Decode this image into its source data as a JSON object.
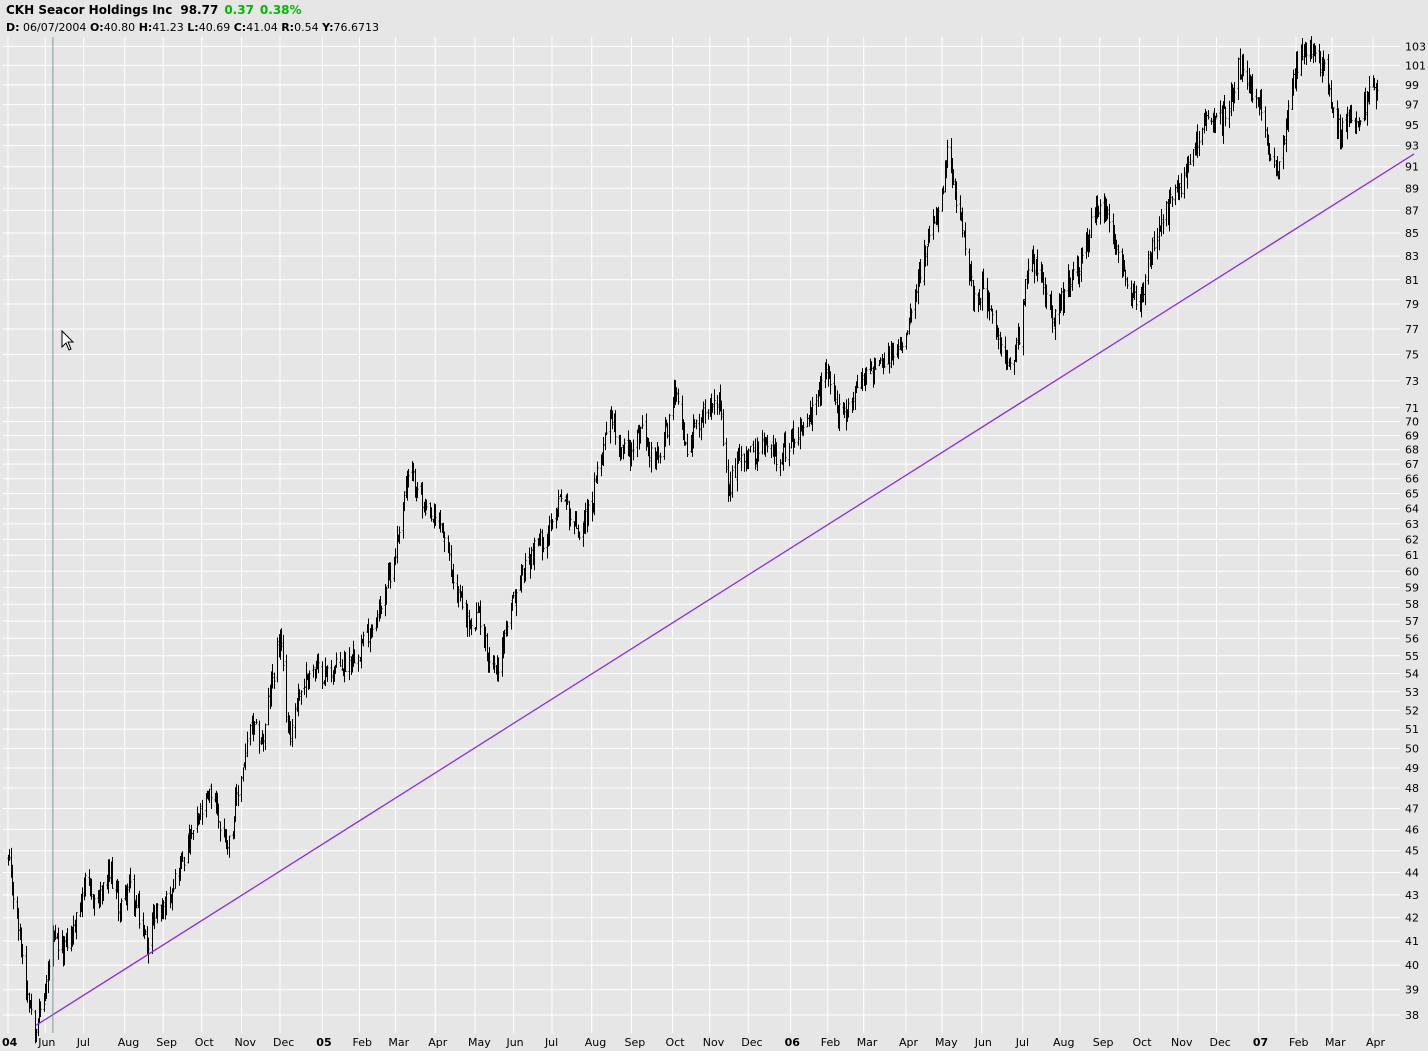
{
  "header": {
    "symbol_name": "CKH Seacor Holdings Inc",
    "last": "98.77",
    "change": "0.37",
    "change_pct": "0.38%",
    "info": {
      "d_label": "D:",
      "d_val": "06/07/2004",
      "o_label": "O:",
      "o_val": "40.80",
      "h_label": "H:",
      "h_val": "41.23",
      "l_label": "L:",
      "l_val": "40.69",
      "c_label": "C:",
      "c_val": "41.04",
      "r_label": "R:",
      "r_val": "0.54",
      "y_label": "Y:",
      "y_val": "76.6713"
    }
  },
  "colors": {
    "background": "#e6e6e6",
    "grid": "#ffffff",
    "bars": "#000000",
    "trendline": "#8a2be2",
    "change_up": "#00b800",
    "cursor_line": "#7a9aa0"
  },
  "chart_data": {
    "type": "ohlc-bar",
    "scale": "log",
    "ylim": [
      37.3,
      104
    ],
    "y_ticks": [
      38,
      39,
      40,
      41,
      42,
      43,
      44,
      45,
      46,
      47,
      48,
      49,
      50,
      51,
      52,
      53,
      54,
      55,
      56,
      57,
      58,
      59,
      60,
      61,
      62,
      63,
      64,
      65,
      66,
      67,
      68,
      69,
      70,
      71,
      73,
      75,
      77,
      79,
      81,
      83,
      85,
      87,
      89,
      91,
      93,
      95,
      97,
      99,
      101,
      103
    ],
    "x_ticks": [
      {
        "label": "04",
        "date": "2004-05-03",
        "year": true
      },
      {
        "label": "Jun",
        "date": "2004-06-01"
      },
      {
        "label": "Jul",
        "date": "2004-07-01"
      },
      {
        "label": "Aug",
        "date": "2004-08-02"
      },
      {
        "label": "Sep",
        "date": "2004-09-01"
      },
      {
        "label": "Oct",
        "date": "2004-10-01"
      },
      {
        "label": "Nov",
        "date": "2004-11-01"
      },
      {
        "label": "Dec",
        "date": "2004-12-01"
      },
      {
        "label": "05",
        "date": "2005-01-03",
        "year": true
      },
      {
        "label": "Feb",
        "date": "2005-02-01"
      },
      {
        "label": "Mar",
        "date": "2005-03-01"
      },
      {
        "label": "Apr",
        "date": "2005-04-01"
      },
      {
        "label": "May",
        "date": "2005-05-02"
      },
      {
        "label": "Jun",
        "date": "2005-06-01"
      },
      {
        "label": "Jul",
        "date": "2005-07-01"
      },
      {
        "label": "Aug",
        "date": "2005-08-01"
      },
      {
        "label": "Sep",
        "date": "2005-09-01"
      },
      {
        "label": "Oct",
        "date": "2005-10-03"
      },
      {
        "label": "Nov",
        "date": "2005-11-01"
      },
      {
        "label": "Dec",
        "date": "2005-12-01"
      },
      {
        "label": "06",
        "date": "2006-01-03",
        "year": true
      },
      {
        "label": "Feb",
        "date": "2006-02-01"
      },
      {
        "label": "Mar",
        "date": "2006-03-01"
      },
      {
        "label": "Apr",
        "date": "2006-04-03"
      },
      {
        "label": "May",
        "date": "2006-05-01"
      },
      {
        "label": "Jun",
        "date": "2006-06-01"
      },
      {
        "label": "Jul",
        "date": "2006-07-03"
      },
      {
        "label": "Aug",
        "date": "2006-08-01"
      },
      {
        "label": "Sep",
        "date": "2006-09-01"
      },
      {
        "label": "Oct",
        "date": "2006-10-02"
      },
      {
        "label": "Nov",
        "date": "2006-11-01"
      },
      {
        "label": "Dec",
        "date": "2006-12-01"
      },
      {
        "label": "07",
        "date": "2007-01-03",
        "year": true
      },
      {
        "label": "Feb",
        "date": "2007-02-01"
      },
      {
        "label": "Mar",
        "date": "2007-03-01"
      },
      {
        "label": "Apr",
        "date": "2007-04-02"
      }
    ],
    "price_path": [
      [
        "2004-05-03",
        44.5
      ],
      [
        "2004-05-10",
        42.0
      ],
      [
        "2004-05-17",
        39.2
      ],
      [
        "2004-05-24",
        37.6
      ],
      [
        "2004-05-31",
        38.6
      ],
      [
        "2004-06-07",
        41.0
      ],
      [
        "2004-06-14",
        40.6
      ],
      [
        "2004-06-24",
        41.6
      ],
      [
        "2004-07-01",
        43.5
      ],
      [
        "2004-07-08",
        42.8
      ],
      [
        "2004-07-15",
        43.0
      ],
      [
        "2004-07-22",
        43.9
      ],
      [
        "2004-07-29",
        42.4
      ],
      [
        "2004-08-05",
        43.5
      ],
      [
        "2004-08-12",
        42.2
      ],
      [
        "2004-08-19",
        40.9
      ],
      [
        "2004-08-26",
        42.4
      ],
      [
        "2004-09-01",
        42.4
      ],
      [
        "2004-09-15",
        44.5
      ],
      [
        "2004-10-01",
        46.8
      ],
      [
        "2004-10-10",
        48.0
      ],
      [
        "2004-10-15",
        46.2
      ],
      [
        "2004-10-22",
        45.4
      ],
      [
        "2004-10-29",
        47.7
      ],
      [
        "2004-11-08",
        51.0
      ],
      [
        "2004-11-18",
        50.5
      ],
      [
        "2004-11-25",
        53.8
      ],
      [
        "2004-12-01",
        56.0
      ],
      [
        "2004-12-03",
        54.0
      ],
      [
        "2004-12-08",
        50.7
      ],
      [
        "2004-12-15",
        52.8
      ],
      [
        "2004-12-25",
        54.3
      ],
      [
        "2005-01-05",
        54.0
      ],
      [
        "2005-01-20",
        54.5
      ],
      [
        "2005-02-01",
        55.5
      ],
      [
        "2005-02-15",
        57.3
      ],
      [
        "2005-02-28",
        60.8
      ],
      [
        "2005-03-10",
        66.0
      ],
      [
        "2005-03-18",
        65.8
      ],
      [
        "2005-03-24",
        63.5
      ],
      [
        "2005-04-05",
        63.0
      ],
      [
        "2005-04-15",
        59.5
      ],
      [
        "2005-04-22",
        58.0
      ],
      [
        "2005-04-29",
        56.3
      ],
      [
        "2005-05-05",
        57.5
      ],
      [
        "2005-05-12",
        55.0
      ],
      [
        "2005-05-19",
        54.3
      ],
      [
        "2005-05-26",
        56.5
      ],
      [
        "2005-06-08",
        60.0
      ],
      [
        "2005-06-18",
        61.5
      ],
      [
        "2005-07-01",
        62.8
      ],
      [
        "2005-07-08",
        65.3
      ],
      [
        "2005-07-15",
        63.5
      ],
      [
        "2005-07-22",
        62.5
      ],
      [
        "2005-08-01",
        64.2
      ],
      [
        "2005-08-08",
        67.5
      ],
      [
        "2005-08-15",
        71.0
      ],
      [
        "2005-08-22",
        68.5
      ],
      [
        "2005-09-01",
        67.8
      ],
      [
        "2005-09-08",
        69.5
      ],
      [
        "2005-09-15",
        67.8
      ],
      [
        "2005-09-22",
        67.2
      ],
      [
        "2005-10-01",
        70.5
      ],
      [
        "2005-10-06",
        72.8
      ],
      [
        "2005-10-13",
        68.0
      ],
      [
        "2005-10-20",
        69.5
      ],
      [
        "2005-11-01",
        71.5
      ],
      [
        "2005-11-05",
        72.3
      ],
      [
        "2005-11-08",
        71.5
      ],
      [
        "2005-11-15",
        65.0
      ],
      [
        "2005-11-25",
        68.0
      ],
      [
        "2005-12-01",
        67.5
      ],
      [
        "2005-12-15",
        68.3
      ],
      [
        "2005-12-25",
        67.5
      ],
      [
        "2006-01-10",
        69.5
      ],
      [
        "2006-01-20",
        70.5
      ],
      [
        "2006-02-01",
        74.0
      ],
      [
        "2006-02-08",
        71.0
      ],
      [
        "2006-02-15",
        70.0
      ],
      [
        "2006-02-22",
        72.5
      ],
      [
        "2006-03-01",
        73.5
      ],
      [
        "2006-03-15",
        74.0
      ],
      [
        "2006-04-01",
        76.0
      ],
      [
        "2006-04-10",
        80.5
      ],
      [
        "2006-04-20",
        84.0
      ],
      [
        "2006-05-01",
        88.0
      ],
      [
        "2006-05-05",
        92.0
      ],
      [
        "2006-05-12",
        88.0
      ],
      [
        "2006-05-19",
        84.0
      ],
      [
        "2006-05-26",
        79.0
      ],
      [
        "2006-06-02",
        80.5
      ],
      [
        "2006-06-09",
        77.5
      ],
      [
        "2006-06-16",
        75.0
      ],
      [
        "2006-06-23",
        74.3
      ],
      [
        "2006-07-01",
        77.0
      ],
      [
        "2006-07-08",
        83.5
      ],
      [
        "2006-07-15",
        81.5
      ],
      [
        "2006-07-22",
        79.5
      ],
      [
        "2006-07-29",
        77.5
      ],
      [
        "2006-08-05",
        80.5
      ],
      [
        "2006-08-15",
        81.5
      ],
      [
        "2006-08-25",
        85.5
      ],
      [
        "2006-09-01",
        88.0
      ],
      [
        "2006-09-08",
        86.0
      ],
      [
        "2006-09-15",
        84.0
      ],
      [
        "2006-09-22",
        81.0
      ],
      [
        "2006-10-01",
        78.5
      ],
      [
        "2006-10-08",
        82.0
      ],
      [
        "2006-10-15",
        84.5
      ],
      [
        "2006-10-29",
        88.5
      ],
      [
        "2006-11-08",
        90.5
      ],
      [
        "2006-11-20",
        95.5
      ],
      [
        "2006-12-01",
        95.0
      ],
      [
        "2006-12-10",
        96.5
      ],
      [
        "2006-12-18",
        101.0
      ],
      [
        "2006-12-25",
        99.0
      ],
      [
        "2007-01-03",
        97.5
      ],
      [
        "2007-01-10",
        92.0
      ],
      [
        "2007-01-18",
        91.0
      ],
      [
        "2007-01-25",
        96.0
      ],
      [
        "2007-02-01",
        101.0
      ],
      [
        "2007-02-10",
        102.5
      ],
      [
        "2007-02-20",
        101.5
      ],
      [
        "2007-02-24",
        102.5
      ],
      [
        "2007-03-01",
        96.5
      ],
      [
        "2007-03-08",
        94.0
      ],
      [
        "2007-03-15",
        96.0
      ],
      [
        "2007-03-22",
        94.5
      ],
      [
        "2007-03-29",
        98.0
      ],
      [
        "2007-04-05",
        98.5
      ]
    ],
    "trendline": {
      "from": [
        "2004-05-25",
        37.6
      ],
      "to": [
        "2007-05-04",
        92.2
      ]
    },
    "cursor_date": "2004-06-07"
  }
}
